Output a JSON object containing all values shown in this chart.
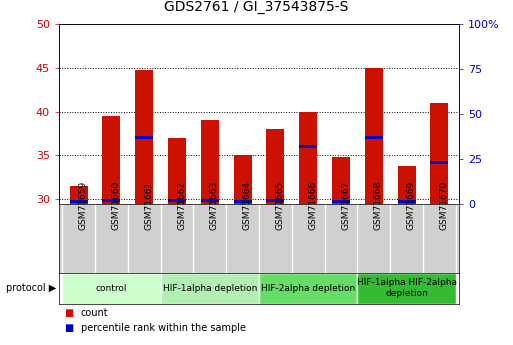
{
  "title": "GDS2761 / GI_37543875-S",
  "samples": [
    "GSM71659",
    "GSM71660",
    "GSM71661",
    "GSM71662",
    "GSM71663",
    "GSM71664",
    "GSM71665",
    "GSM71666",
    "GSM71667",
    "GSM71668",
    "GSM71669",
    "GSM71670"
  ],
  "counts": [
    31.5,
    39.5,
    44.8,
    37.0,
    39.0,
    35.0,
    38.0,
    40.0,
    34.8,
    45.0,
    33.8,
    41.0
  ],
  "percentile_ranks": [
    1.0,
    1.5,
    37.0,
    1.5,
    1.5,
    1.0,
    1.5,
    32.0,
    1.0,
    37.0,
    1.0,
    23.0
  ],
  "ylim_left": [
    29.5,
    50
  ],
  "ylim_right": [
    0,
    100
  ],
  "yticks_left": [
    30,
    35,
    40,
    45,
    50
  ],
  "yticks_right": [
    0,
    25,
    50,
    75,
    100
  ],
  "groups": [
    {
      "label": "control",
      "samples": [
        0,
        1,
        2
      ],
      "color": "#ccffcc"
    },
    {
      "label": "HIF-1alpha depletion",
      "samples": [
        3,
        4,
        5
      ],
      "color": "#b3eeb3"
    },
    {
      "label": "HIF-2alpha depletion",
      "samples": [
        6,
        7,
        8
      ],
      "color": "#66dd66"
    },
    {
      "label": "HIF-1alpha HIF-2alpha\ndepletion",
      "samples": [
        9,
        10,
        11
      ],
      "color": "#33bb33"
    }
  ],
  "bar_color": "#cc1100",
  "percentile_color": "#0000cc",
  "bar_width": 0.55,
  "pct_bar_height": 0.35,
  "background_color": "#ffffff",
  "plot_bg_color": "#ffffff",
  "sample_bg_color": "#d0d0d0",
  "tick_label_color_left": "#cc0000",
  "tick_label_color_right": "#0000cc",
  "title_color": "#000000",
  "title_fontsize": 10,
  "axis_fontsize": 8,
  "sample_fontsize": 6.5,
  "proto_fontsize": 6.5,
  "legend_fontsize": 7
}
